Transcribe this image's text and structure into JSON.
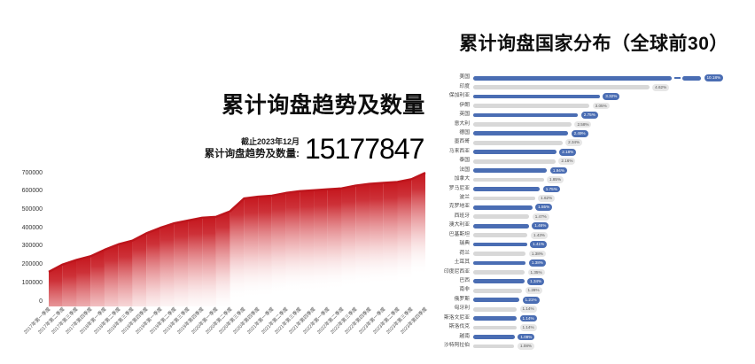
{
  "colors": {
    "area_line": "#bd151c",
    "area_fill_top": "#c5161d",
    "bar_blue": "#4a6db3",
    "bar_gray": "#d8d8d8",
    "pill_gray_bg": "#e7e7e7",
    "title_text": "#0d0d0d"
  },
  "chart_data": [
    {
      "type": "area",
      "title": "累计询盘趋势及数量",
      "annotation": {
        "small": "截止2023年12月",
        "label": "累计询盘趋势及数量:",
        "value": "15177847"
      },
      "x": [
        "2017年第一季度",
        "2017年第二季度",
        "2017年第三季度",
        "2017年第四季度",
        "2018年第一季度",
        "2018年第二季度",
        "2018年第三季度",
        "2018年第四季度",
        "2019年第一季度",
        "2019年第二季度",
        "2019年第三季度",
        "2019年第四季度",
        "2020年第一季度",
        "2020年第二季度",
        "2020年第三季度",
        "2020年第四季度",
        "2021年第一季度",
        "2021年第二季度",
        "2021年第三季度",
        "2021年第四季度",
        "2022年第一季度",
        "2022年第二季度",
        "2022年第三季度",
        "2022年第四季度",
        "2023年第一季度",
        "2023年第二季度",
        "2023年第三季度",
        "2023年第四季度"
      ],
      "values": [
        160000,
        200000,
        225000,
        245000,
        280000,
        310000,
        330000,
        370000,
        400000,
        425000,
        440000,
        455000,
        460000,
        490000,
        560000,
        570000,
        575000,
        590000,
        600000,
        605000,
        610000,
        615000,
        630000,
        640000,
        645000,
        650000,
        665000,
        700000
      ],
      "ylim": [
        0,
        700000
      ],
      "yticks": [
        0,
        100000,
        200000,
        300000,
        400000,
        500000,
        600000,
        700000
      ],
      "grid": false,
      "legend": false
    },
    {
      "type": "bar",
      "orientation": "horizontal",
      "title": "累计询盘国家分布（全球前30）",
      "categories": [
        "美国",
        "印度",
        "保加利亚",
        "伊朗",
        "英国",
        "意大利",
        "德国",
        "墨西哥",
        "马来西亚",
        "泰国",
        "法国",
        "加拿大",
        "罗马尼亚",
        "波兰",
        "克罗地亚",
        "西班牙",
        "澳大利亚",
        "巴基斯坦",
        "瑞典",
        "荷兰",
        "土耳其",
        "印度尼西亚",
        "巴西",
        "南非",
        "俄罗斯",
        "匈牙利",
        "斯洛文尼亚",
        "斯洛伐克",
        "越南",
        "沙特阿拉伯"
      ],
      "values": [
        10.18,
        4.62,
        3.32,
        3.05,
        2.75,
        2.58,
        2.49,
        2.34,
        2.18,
        2.16,
        1.94,
        1.85,
        1.75,
        1.62,
        1.55,
        1.47,
        1.46,
        1.43,
        1.41,
        1.38,
        1.38,
        1.35,
        1.34,
        1.28,
        1.21,
        1.14,
        1.14,
        1.14,
        1.09,
        1.08
      ],
      "labels": [
        "10.18%",
        "4.62%",
        "3.32%",
        "3.05%",
        "2.75%",
        "2.58%",
        "2.49%",
        "2.34%",
        "2.18%",
        "2.16%",
        "1.94%",
        "1.85%",
        "1.75%",
        "1.62%",
        "1.55%",
        "1.47%",
        "1.46%",
        "1.43%",
        "1.41%",
        "1.38%",
        "1.38%",
        "1.35%",
        "1.34%",
        "1.28%",
        "1.21%",
        "1.14%",
        "1.14%",
        "1.14%",
        "1.09%",
        "1.08%"
      ],
      "broken_bar_category": "美国",
      "legend": false,
      "grid": false
    }
  ]
}
